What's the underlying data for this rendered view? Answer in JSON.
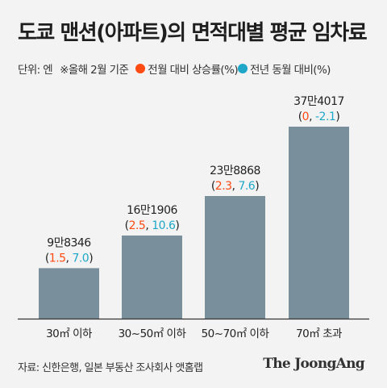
{
  "title": "도쿄 맨션(아파트)의 면적대별 평균 임차료",
  "legend": {
    "unit": "단위: 엔",
    "basis": "※올해 2월 기준",
    "monthly": "전월 대비 상승률(%)",
    "yearly": "전년 동월 대비(%)"
  },
  "colors": {
    "bar": "#798f9b",
    "monthly": "#ff4a12",
    "yearly": "#1ea7c9",
    "axis": "#333333"
  },
  "chart_data": {
    "type": "bar",
    "categories": [
      "30㎡ 이하",
      "30~50㎡ 이하",
      "50~70㎡ 이하",
      "70㎡ 초과"
    ],
    "values": [
      98346,
      161906,
      238868,
      374017
    ],
    "value_labels": [
      "9만8346",
      "16만1906",
      "23만8868",
      "37만4017"
    ],
    "monthly_change": [
      "1.5",
      "2.5",
      "2.3",
      "0"
    ],
    "yearly_change": [
      "7.0",
      "10.6",
      "7.6",
      "-2.1"
    ],
    "title": "도쿄 맨션(아파트)의 면적대별 평균 임차료",
    "ylim": [
      0,
      374017
    ]
  },
  "source": "자료: 신한은행, 일본 부동산 조사회사 앳홈랩",
  "brand": "The JoongAng"
}
